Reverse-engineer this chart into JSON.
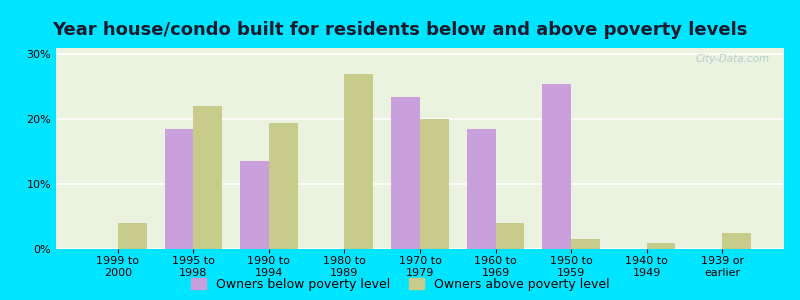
{
  "title": "Year house/condo built for residents below and above poverty levels",
  "categories": [
    "1999 to\n2000",
    "1995 to\n1998",
    "1990 to\n1994",
    "1980 to\n1989",
    "1970 to\n1979",
    "1960 to\n1969",
    "1950 to\n1959",
    "1940 to\n1949",
    "1939 or\nearlier"
  ],
  "below_poverty": [
    0.0,
    18.5,
    13.5,
    0.0,
    23.5,
    18.5,
    25.5,
    0.0,
    0.0
  ],
  "above_poverty": [
    4.0,
    22.0,
    19.5,
    27.0,
    20.0,
    4.0,
    1.5,
    1.0,
    2.5
  ],
  "below_color": "#c9a0dc",
  "above_color": "#c8cc8a",
  "background_outer": "#00e5ff",
  "background_plot": "#eaf3e0",
  "yticks": [
    0,
    10,
    20,
    30
  ],
  "ylim": [
    0,
    31
  ],
  "title_fontsize": 13,
  "tick_fontsize": 8,
  "legend_fontsize": 9,
  "watermark": "City-Data.com",
  "legend_below": "Owners below poverty level",
  "legend_above": "Owners above poverty level"
}
